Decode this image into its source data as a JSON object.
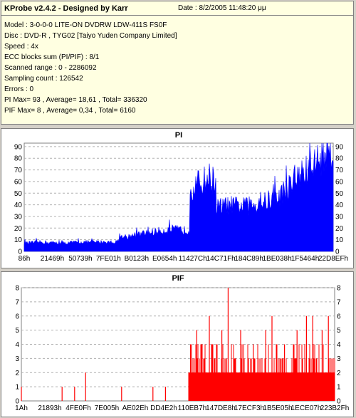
{
  "info": {
    "app_title": "KProbe v2.4.2 - Designed by Karr",
    "date": "Date : 8/2/2005 11:48:20 μμ",
    "lines": [
      "Model : 3-0-0-0 LITE-ON DVDRW LDW-411S   FS0F",
      "Disc : DVD-R , TYG02 [Taiyo Yuden Company Limited]",
      "Speed : 4x",
      "ECC blocks sum (PI/PIF) : 8/1",
      "Scanned range : 0 - 2286092",
      "Sampling count : 126542",
      "Errors : 0",
      "PI Max= 93 , Average= 18,61 , Total= 336320",
      "PIF Max= 8 , Average= 0,34 , Total= 6160"
    ]
  },
  "chart_data": [
    {
      "type": "area",
      "title": "PI",
      "color": "#0000ff",
      "ylim": [
        0,
        93
      ],
      "y_ticks": [
        0,
        10,
        20,
        30,
        40,
        50,
        60,
        70,
        80,
        90
      ],
      "x_tick_labels": [
        "86h",
        "21469h",
        "50739h",
        "7FE01h",
        "B0123h",
        "E0654h",
        "11427Ch",
        "14C71Fh",
        "184C89h",
        "1BE038h",
        "1F5464h",
        "22D8EFh"
      ],
      "grid": true,
      "x": [
        0,
        0.06,
        0.12,
        0.18,
        0.24,
        0.3,
        0.31,
        0.36,
        0.42,
        0.48,
        0.535,
        0.536,
        0.56,
        0.6,
        0.62,
        0.621,
        0.66,
        0.72,
        0.78,
        0.82,
        0.86,
        0.9,
        0.94,
        0.97,
        1.0
      ],
      "values": [
        7,
        8,
        7,
        8,
        8,
        8,
        12,
        14,
        17,
        19,
        18,
        52,
        58,
        64,
        60,
        38,
        40,
        39,
        43,
        47,
        57,
        66,
        76,
        85,
        90
      ]
    },
    {
      "type": "bar",
      "title": "PIF",
      "color": "#ff0000",
      "ylim": [
        0,
        8
      ],
      "y_ticks": [
        0,
        1,
        2,
        3,
        4,
        5,
        6,
        7,
        8
      ],
      "x_tick_labels": [
        "1Ah",
        "21893h",
        "4FE0Fh",
        "7E005h",
        "AE02Eh",
        "DD4E2h",
        "110EB7h",
        "147DE8h",
        "17ECF3h",
        "1B5E05h",
        "1ECE07h",
        "223B2Fh"
      ],
      "grid": true,
      "baseline": {
        "from": 0.535,
        "to": 1.0,
        "level": 2,
        "noise_level": 3
      },
      "spikes": [
        {
          "x": 0.0,
          "value": 1
        },
        {
          "x": 0.13,
          "value": 1
        },
        {
          "x": 0.17,
          "value": 1
        },
        {
          "x": 0.205,
          "value": 2
        },
        {
          "x": 0.32,
          "value": 1
        },
        {
          "x": 0.42,
          "value": 1
        },
        {
          "x": 0.46,
          "value": 1
        },
        {
          "x": 0.54,
          "value": 4
        },
        {
          "x": 0.56,
          "value": 5
        },
        {
          "x": 0.6,
          "value": 6
        },
        {
          "x": 0.64,
          "value": 5
        },
        {
          "x": 0.66,
          "value": 8
        },
        {
          "x": 0.7,
          "value": 5
        },
        {
          "x": 0.74,
          "value": 4
        },
        {
          "x": 0.78,
          "value": 5
        },
        {
          "x": 0.8,
          "value": 6
        },
        {
          "x": 0.84,
          "value": 4
        },
        {
          "x": 0.88,
          "value": 5
        },
        {
          "x": 0.91,
          "value": 6
        },
        {
          "x": 0.93,
          "value": 6
        },
        {
          "x": 0.96,
          "value": 5
        },
        {
          "x": 0.98,
          "value": 6
        }
      ]
    }
  ]
}
